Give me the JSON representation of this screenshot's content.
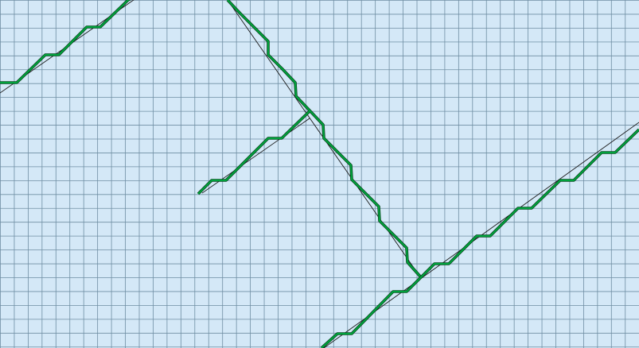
{
  "diagram": {
    "kind": "line-rasterization-grid",
    "colors": {
      "background": "#d4e8f7",
      "grid": "#6f8ea3",
      "ideal_line": "#1a1a1a",
      "raster_path": "#00a23c",
      "raster_outline": "#0b3d1c"
    },
    "labels": []
  }
}
